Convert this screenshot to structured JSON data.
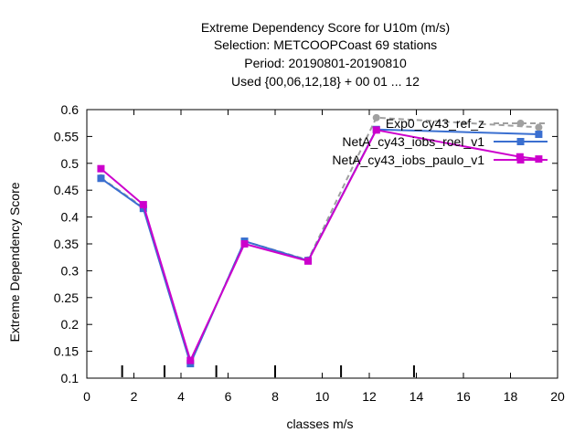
{
  "chart_data": {
    "type": "line",
    "title_lines": [
      "Extreme Dependency Score  for U10m (m/s)",
      "Selection: METCOOPCoast     69 stations",
      "Period: 20190801-20190810",
      "Used {00,06,12,18} + 00 01 ... 12"
    ],
    "xlabel": "classes m/s",
    "ylabel": "Extreme Dependency Score",
    "xlim": [
      0,
      20
    ],
    "ylim": [
      0.1,
      0.6
    ],
    "x_ticks": [
      0,
      2,
      4,
      6,
      8,
      10,
      12,
      14,
      16,
      18,
      20
    ],
    "y_ticks": [
      0.1,
      0.15,
      0.2,
      0.25,
      0.3,
      0.35,
      0.4,
      0.45,
      0.5,
      0.55,
      0.6
    ],
    "x_tick_labels": [
      "0",
      "2",
      "4",
      "6",
      "8",
      "10",
      "12",
      "14",
      "16",
      "18",
      "20"
    ],
    "y_tick_labels": [
      "0.1",
      "0.15",
      "0.2",
      "0.25",
      "0.3",
      "0.35",
      "0.4",
      "0.45",
      "0.5",
      "0.55",
      "0.6"
    ],
    "class_boundaries": [
      1.5,
      3.3,
      5.5,
      8.0,
      10.8,
      13.9
    ],
    "legend_position": "top-right",
    "series": [
      {
        "name": "Exp0_cy43_ref_z",
        "color": "#a0a0a0",
        "dashed": true,
        "marker": "circle",
        "x": [
          0.6,
          2.4,
          4.4,
          6.7,
          9.4,
          12.3,
          19.2
        ],
        "y": [
          0.473,
          0.418,
          0.128,
          0.355,
          0.32,
          0.585,
          0.567
        ]
      },
      {
        "name": "NetA_cy43_iobs_roel_v1",
        "color": "#3a6fd0",
        "dashed": false,
        "marker": "square",
        "x": [
          0.6,
          2.4,
          4.4,
          6.7,
          9.4,
          12.3,
          19.2
        ],
        "y": [
          0.472,
          0.416,
          0.127,
          0.355,
          0.319,
          0.563,
          0.554
        ]
      },
      {
        "name": "NetA_cy43_iobs_paulo_v1",
        "color": "#cc00cc",
        "dashed": false,
        "marker": "square",
        "x": [
          0.6,
          2.4,
          4.4,
          6.7,
          9.4,
          12.3,
          18.4,
          19.2
        ],
        "y": [
          0.49,
          0.423,
          0.133,
          0.35,
          0.318,
          0.562,
          0.512,
          0.508
        ]
      }
    ]
  }
}
